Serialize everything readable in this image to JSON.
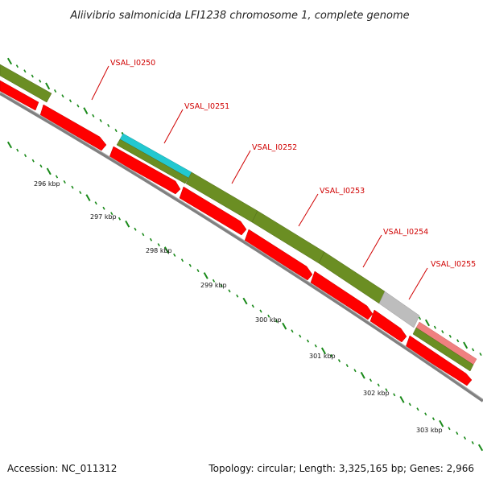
{
  "title": "Aliivibrio salmonicida LFI1238 chromosome 1, complete genome",
  "footer": {
    "accession": "Accession: NC_011312",
    "summary": "Topology: circular; Length: 3,325,165 bp; Genes: 2,966"
  },
  "genes": [
    {
      "label": "VSAL_I0250"
    },
    {
      "label": "VSAL_I0251"
    },
    {
      "label": "VSAL_I0252"
    },
    {
      "label": "VSAL_I0253"
    },
    {
      "label": "VSAL_I0254"
    },
    {
      "label": "VSAL_I0255"
    }
  ],
  "ticks": [
    "296 kbp",
    "297 kbp",
    "298 kbp",
    "299 kbp",
    "300 kbp",
    "301 kbp",
    "302 kbp",
    "303 kbp"
  ],
  "colors": {
    "cds_red": "#ff0000",
    "gene_olive": "#6b8e23",
    "gene_cyan": "#22c8d0",
    "gene_grey": "#bdbdbd",
    "gene_pink": "#f08080",
    "backbone": "#808080",
    "tick_green": "#1a8a1a",
    "label_red": "#d00000"
  }
}
